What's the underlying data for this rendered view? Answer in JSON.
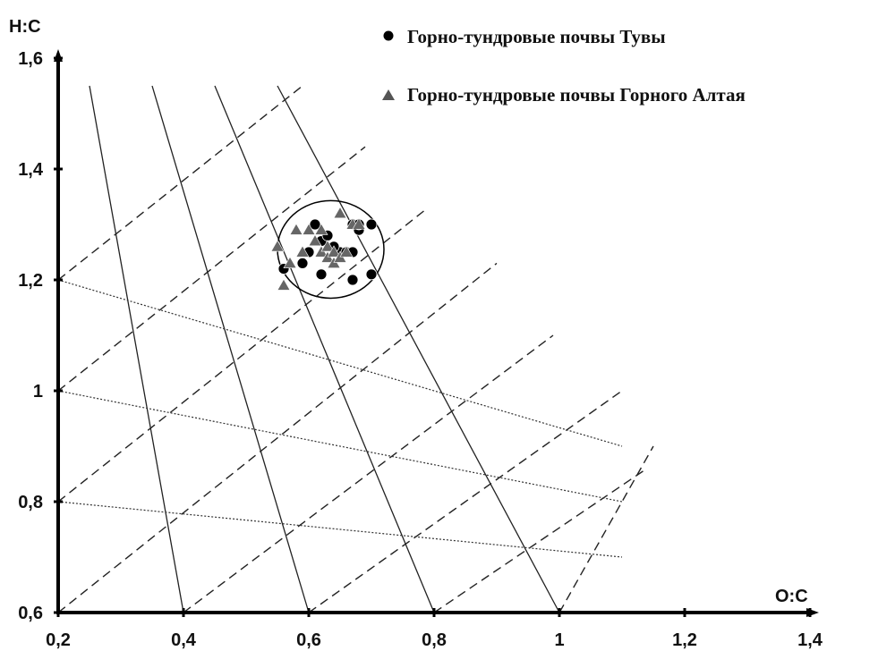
{
  "chart_data": {
    "type": "scatter",
    "xlabel": "O:C",
    "ylabel": "H:C",
    "xlim": [
      0.2,
      1.4
    ],
    "ylim": [
      0.6,
      1.6
    ],
    "x_ticks": [
      "0,2",
      "0,4",
      "0,6",
      "0,8",
      "1",
      "1,2",
      "1,4"
    ],
    "x_tick_values": [
      0.2,
      0.4,
      0.6,
      0.8,
      1.0,
      1.2,
      1.4
    ],
    "y_ticks": [
      "0,6",
      "0,8",
      "1",
      "1,2",
      "1,4",
      "1,6"
    ],
    "y_tick_values": [
      0.6,
      0.8,
      1.0,
      1.2,
      1.4,
      1.6
    ],
    "legend_position": "top-right",
    "series": [
      {
        "name": "Горно-тундровые почвы Тувы",
        "marker": "circle",
        "color": "#000000",
        "points": [
          [
            0.61,
            1.3
          ],
          [
            0.62,
            1.27
          ],
          [
            0.63,
            1.28
          ],
          [
            0.59,
            1.23
          ],
          [
            0.56,
            1.22
          ],
          [
            0.62,
            1.21
          ],
          [
            0.65,
            1.25
          ],
          [
            0.66,
            1.25
          ],
          [
            0.67,
            1.25
          ],
          [
            0.67,
            1.3
          ],
          [
            0.68,
            1.29
          ],
          [
            0.68,
            1.3
          ],
          [
            0.7,
            1.3
          ],
          [
            0.7,
            1.21
          ],
          [
            0.67,
            1.2
          ],
          [
            0.64,
            1.26
          ],
          [
            0.6,
            1.25
          ]
        ]
      },
      {
        "name": "Горно-тундровые почвы Горного Алтая",
        "marker": "triangle",
        "color": "#666666",
        "points": [
          [
            0.55,
            1.26
          ],
          [
            0.57,
            1.23
          ],
          [
            0.56,
            1.19
          ],
          [
            0.58,
            1.29
          ],
          [
            0.59,
            1.25
          ],
          [
            0.6,
            1.29
          ],
          [
            0.61,
            1.27
          ],
          [
            0.62,
            1.29
          ],
          [
            0.62,
            1.25
          ],
          [
            0.63,
            1.24
          ],
          [
            0.63,
            1.26
          ],
          [
            0.64,
            1.25
          ],
          [
            0.64,
            1.23
          ],
          [
            0.65,
            1.32
          ],
          [
            0.65,
            1.24
          ],
          [
            0.66,
            1.25
          ],
          [
            0.67,
            1.3
          ],
          [
            0.68,
            1.3
          ]
        ]
      }
    ],
    "ellipse": {
      "cx": 0.635,
      "cy": 1.255,
      "rx": 0.085,
      "ry": 0.088
    },
    "solid_lines": [
      [
        [
          0.25,
          1.55
        ],
        [
          0.4,
          0.6
        ]
      ],
      [
        [
          0.35,
          1.55
        ],
        [
          0.6,
          0.6
        ]
      ],
      [
        [
          0.45,
          1.55
        ],
        [
          0.8,
          0.6
        ]
      ],
      [
        [
          0.55,
          1.55
        ],
        [
          1.0,
          0.6
        ]
      ]
    ],
    "dashed_lines": [
      [
        [
          0.2,
          1.2
        ],
        [
          0.59,
          1.55
        ]
      ],
      [
        [
          0.2,
          1.0
        ],
        [
          0.69,
          1.44
        ]
      ],
      [
        [
          0.2,
          0.8
        ],
        [
          0.79,
          1.33
        ]
      ],
      [
        [
          0.2,
          0.6
        ],
        [
          0.9,
          1.23
        ]
      ],
      [
        [
          0.4,
          0.6
        ],
        [
          0.99,
          1.1
        ]
      ],
      [
        [
          0.6,
          0.6
        ],
        [
          1.1,
          1.0
        ]
      ],
      [
        [
          0.8,
          0.6
        ],
        [
          1.14,
          0.86
        ]
      ],
      [
        [
          1.0,
          0.6
        ],
        [
          1.15,
          0.9
        ]
      ]
    ],
    "dotted_lines": [
      [
        [
          0.2,
          1.2
        ],
        [
          1.1,
          0.9
        ]
      ],
      [
        [
          0.2,
          1.0
        ],
        [
          1.1,
          0.8
        ]
      ],
      [
        [
          0.2,
          0.8
        ],
        [
          1.1,
          0.7
        ]
      ]
    ]
  }
}
